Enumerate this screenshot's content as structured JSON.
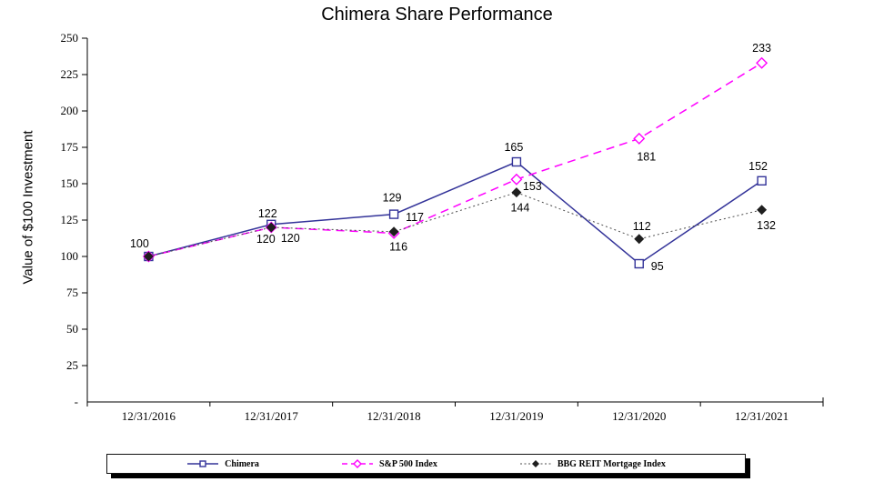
{
  "chart_data": {
    "type": "line",
    "title": "Chimera Share Performance",
    "ylabel": "Value of $100 Investment",
    "xlabel": "",
    "categories": [
      "12/31/2016",
      "12/31/2017",
      "12/31/2018",
      "12/31/2019",
      "12/31/2020",
      "12/31/2021"
    ],
    "ylim": [
      0,
      250
    ],
    "y_ticks": {
      "values": [
        0,
        25,
        50,
        75,
        100,
        125,
        150,
        175,
        200,
        225,
        250
      ],
      "labels": [
        "-",
        "25",
        "50",
        "75",
        "100",
        "125",
        "150",
        "175",
        "200",
        "225",
        "250"
      ]
    },
    "grid": false,
    "legend_position": "bottom",
    "series": [
      {
        "name": "Chimera",
        "color": "#333399",
        "line": "solid",
        "stroke_width": 1.5,
        "marker": "open-square",
        "values": [
          100,
          122,
          129,
          165,
          95,
          152
        ],
        "data_labels": [
          {
            "text": "100",
            "dx": -10,
            "dy": -10,
            "anchor": "middle"
          },
          {
            "text": "122",
            "dx": -4,
            "dy": -8,
            "anchor": "middle"
          },
          {
            "text": "129",
            "dx": -2,
            "dy": -14,
            "anchor": "middle"
          },
          {
            "text": "165",
            "dx": -3,
            "dy": -12,
            "anchor": "middle"
          },
          {
            "text": "95",
            "dx": 13,
            "dy": 7,
            "anchor": "start"
          },
          {
            "text": "152",
            "dx": -4,
            "dy": -12,
            "anchor": "middle"
          }
        ]
      },
      {
        "name": "S&P 500 Index",
        "color": "#FF00FF",
        "line": "dashed",
        "stroke_width": 1.5,
        "marker": "open-diamond",
        "values": [
          100,
          120,
          116,
          153,
          181,
          233
        ],
        "data_labels": [
          {
            "text": ""
          },
          {
            "text": "120",
            "dx": -6,
            "dy": 17,
            "anchor": "middle"
          },
          {
            "text": "116",
            "dx": 5,
            "dy": 19,
            "anchor": "middle"
          },
          {
            "text": "153",
            "dx": 7,
            "dy": 12,
            "anchor": "start"
          },
          {
            "text": "181",
            "dx": 8,
            "dy": 24,
            "anchor": "middle"
          },
          {
            "text": "233",
            "dx": 0,
            "dy": -12,
            "anchor": "middle"
          }
        ]
      },
      {
        "name": "BBG REIT Mortgage Index",
        "color": "#4d4d4d",
        "marker_color": "#1f1f1f",
        "line": "dotted",
        "stroke_width": 1,
        "marker": "filled-diamond",
        "values": [
          100,
          120,
          117,
          144,
          112,
          132
        ],
        "data_labels": [
          {
            "text": ""
          },
          {
            "text": "120",
            "dx": 21,
            "dy": 16,
            "anchor": "middle"
          },
          {
            "text": "117",
            "dx": 13,
            "dy": -12,
            "anchor": "start"
          },
          {
            "text": "144",
            "dx": 4,
            "dy": 21,
            "anchor": "middle"
          },
          {
            "text": "112",
            "dx": 3,
            "dy": -10,
            "anchor": "middle"
          },
          {
            "text": "132",
            "dx": 5,
            "dy": 21,
            "anchor": "middle"
          }
        ]
      }
    ]
  }
}
